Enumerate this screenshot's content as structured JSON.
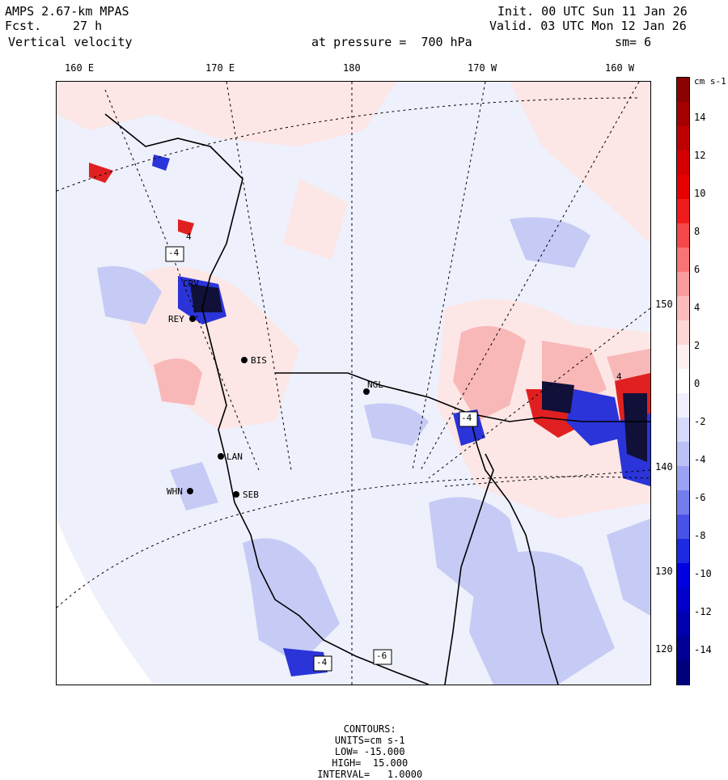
{
  "header": {
    "model": "AMPS 2.67-km MPAS",
    "forecast_label": "Fcst.",
    "forecast_hours": "27 h",
    "field": "Vertical velocity",
    "init": "Init. 00 UTC Sun 11 Jan 26",
    "valid": "Valid. 03 UTC Mon 12 Jan 26",
    "pressure_label": "at pressure =  700 hPa",
    "smoothing": "sm= 6"
  },
  "longitude_labels": [
    "160 E",
    "170 E",
    "180",
    "170 W",
    "160 W"
  ],
  "latitude_labels": [
    "150 W",
    "140 W",
    "130 W",
    "120 W"
  ],
  "stations": [
    "CRV",
    "REY",
    "BIS",
    "NGL",
    "LAN",
    "WHN",
    "SEB"
  ],
  "contour_labels": [
    "-4",
    "-4",
    "-4",
    "4",
    "-6",
    "4"
  ],
  "colorbar": {
    "units": "cm s-1",
    "ticks": [
      "14",
      "12",
      "10",
      "8",
      "6",
      "4",
      "2",
      "0",
      "-2",
      "-4",
      "-6",
      "-8",
      "-10",
      "-12",
      "-14"
    ],
    "colors": [
      "#8b0000",
      "#a50000",
      "#bf0000",
      "#d40000",
      "#e60000",
      "#f01c1c",
      "#f54848",
      "#f87474",
      "#fa9c9c",
      "#fcbcbc",
      "#fdd7d7",
      "#fff0f0",
      "#ffffff",
      "#f0f0ff",
      "#d7d9fb",
      "#bcc0f7",
      "#9ca2f3",
      "#747dee",
      "#4852e8",
      "#1c2ae2",
      "#0000e0",
      "#0000c8",
      "#0000ae",
      "#000094",
      "#00007a"
    ]
  },
  "footer": {
    "contours_label": "CONTOURS:",
    "units": "UNITS=cm s-1",
    "low": "LOW= -15.000",
    "high": "HIGH=  15.000",
    "interval": "INTERVAL=   1.0000"
  }
}
